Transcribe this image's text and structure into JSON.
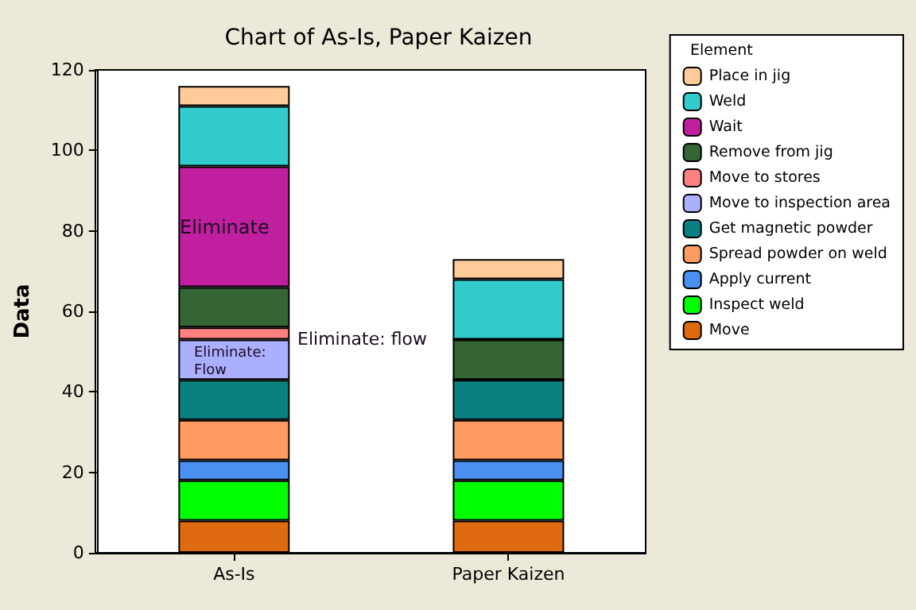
{
  "chart_data": {
    "type": "bar",
    "title": "Chart of As-Is, Paper Kaizen",
    "ylabel": "Data",
    "legend_title": "Element",
    "categories": [
      "As-Is",
      "Paper Kaizen"
    ],
    "stacked": true,
    "ylim": [
      0,
      120
    ],
    "yticks": [
      0,
      20,
      40,
      60,
      80,
      100,
      120
    ],
    "grid": false,
    "legend": "right",
    "series": [
      {
        "name": "Move",
        "color": "#e06a10",
        "values": [
          8,
          8
        ]
      },
      {
        "name": "Inspect weld",
        "color": "#00ff00",
        "values": [
          10,
          10
        ]
      },
      {
        "name": "Apply current",
        "color": "#4a90f0",
        "values": [
          5,
          5
        ]
      },
      {
        "name": "Spread powder on weld",
        "color": "#ff9a60",
        "values": [
          10,
          10
        ]
      },
      {
        "name": "Get magnetic powder",
        "color": "#0a8080",
        "values": [
          10,
          10
        ]
      },
      {
        "name": "Move to inspection area",
        "color": "#aab0ff",
        "values": [
          10,
          0
        ]
      },
      {
        "name": "Move to stores",
        "color": "#ff8080",
        "values": [
          3,
          0
        ]
      },
      {
        "name": "Remove from jig",
        "color": "#356535",
        "values": [
          10,
          10
        ]
      },
      {
        "name": "Wait",
        "color": "#c020a0",
        "values": [
          30,
          0
        ]
      },
      {
        "name": "Weld",
        "color": "#33cccc",
        "values": [
          15,
          15
        ]
      },
      {
        "name": "Place in jig",
        "color": "#ffcc99",
        "values": [
          5,
          5
        ]
      }
    ],
    "annotations": [
      "Eliminate",
      "Eliminate:\nFlow",
      "Eliminate: flow"
    ]
  }
}
